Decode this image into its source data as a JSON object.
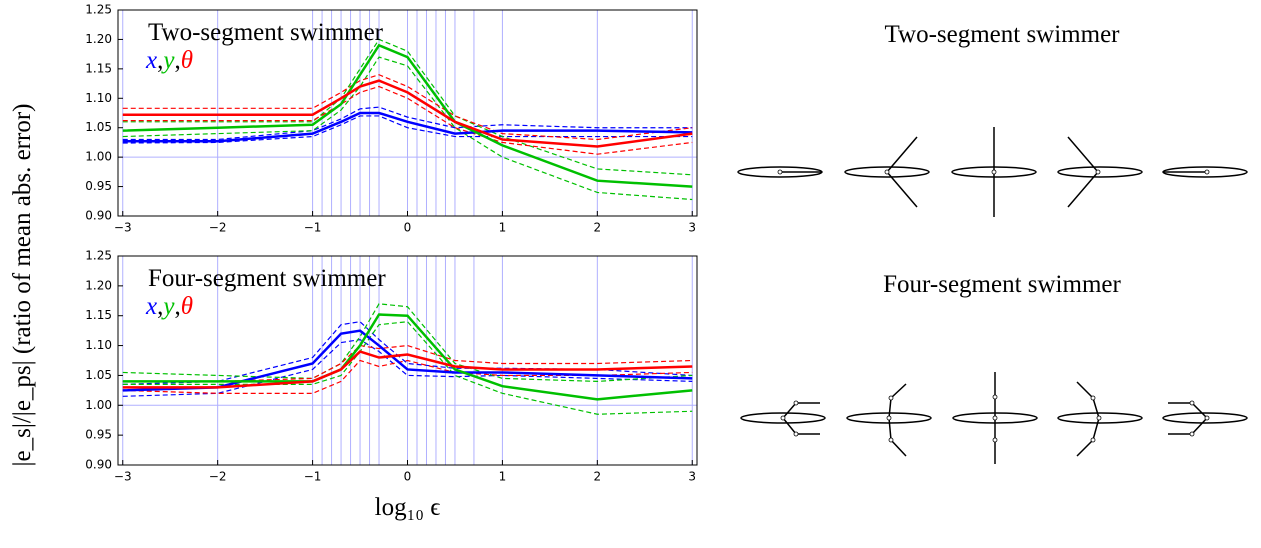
{
  "shared_y_label": "|e_s|/|e_ps| (ratio of mean abs. error)",
  "legend_separator": ",",
  "chart_data": [
    {
      "type": "line",
      "title": "Two-segment swimmer",
      "xlim": [
        -3.05,
        3.05
      ],
      "ylim": [
        0.9,
        1.25
      ],
      "xticks": [
        {
          "value": -3,
          "label": "−3"
        },
        {
          "value": -2,
          "label": "−2"
        },
        {
          "value": -1,
          "label": "−1"
        },
        0,
        1,
        2,
        3
      ],
      "yticks": [
        {
          "value": 0.9,
          "label": "0.90"
        },
        0.95,
        {
          "value": 1.0,
          "label": "1.00"
        },
        1.05,
        {
          "value": 1.1,
          "label": "1.10"
        },
        1.15,
        {
          "value": 1.2,
          "label": "1.20"
        },
        1.25
      ],
      "vgrid": [
        -3,
        -2,
        -1,
        -0.9,
        -0.8,
        -0.7,
        -0.6,
        -0.5,
        -0.4,
        -0.3,
        0,
        0.1,
        0.2,
        0.3,
        0.4,
        0.5,
        0.7,
        1,
        2,
        3
      ],
      "hline": 1,
      "x": [
        -3,
        -2,
        -1,
        -0.7,
        -0.5,
        -0.3,
        0,
        0.5,
        1,
        2,
        3
      ],
      "series": [
        {
          "name": "x",
          "color": "#0000ff",
          "values": [
            1.027,
            1.027,
            1.04,
            1.06,
            1.075,
            1.075,
            1.06,
            1.04,
            1.045,
            1.045,
            1.042
          ],
          "lower": [
            1.024,
            1.025,
            1.035,
            1.055,
            1.07,
            1.07,
            1.05,
            1.035,
            1.035,
            1.035,
            1.035
          ],
          "upper": [
            1.03,
            1.03,
            1.045,
            1.065,
            1.082,
            1.085,
            1.068,
            1.05,
            1.055,
            1.05,
            1.05
          ]
        },
        {
          "name": "y",
          "color": "#00c000",
          "values": [
            1.045,
            1.05,
            1.055,
            1.09,
            1.14,
            1.19,
            1.17,
            1.06,
            1.02,
            0.96,
            0.95
          ],
          "lower": [
            1.035,
            1.04,
            1.045,
            1.08,
            1.12,
            1.17,
            1.155,
            1.05,
            1.0,
            0.94,
            0.928
          ],
          "upper": [
            1.06,
            1.06,
            1.06,
            1.1,
            1.15,
            1.2,
            1.18,
            1.07,
            1.035,
            0.98,
            0.97
          ]
        },
        {
          "name": "θ",
          "color": "#ff0000",
          "values": [
            1.072,
            1.072,
            1.072,
            1.1,
            1.12,
            1.13,
            1.11,
            1.06,
            1.03,
            1.018,
            1.04
          ],
          "lower": [
            1.062,
            1.062,
            1.062,
            1.09,
            1.11,
            1.12,
            1.1,
            1.05,
            1.025,
            1.005,
            1.025
          ],
          "upper": [
            1.083,
            1.083,
            1.083,
            1.11,
            1.13,
            1.14,
            1.12,
            1.07,
            1.04,
            1.03,
            1.05
          ]
        }
      ]
    },
    {
      "type": "line",
      "title": "Four-segment swimmer",
      "x_label": "log₁₀ ϵ",
      "xlim": [
        -3.05,
        3.05
      ],
      "ylim": [
        0.9,
        1.25
      ],
      "xticks": [
        {
          "value": -3,
          "label": "−3"
        },
        {
          "value": -2,
          "label": "−2"
        },
        {
          "value": -1,
          "label": "−1"
        },
        0,
        1,
        2,
        3
      ],
      "yticks": [
        {
          "value": 0.9,
          "label": "0.90"
        },
        0.95,
        {
          "value": 1.0,
          "label": "1.00"
        },
        1.05,
        {
          "value": 1.1,
          "label": "1.10"
        },
        1.15,
        {
          "value": 1.2,
          "label": "1.20"
        },
        1.25
      ],
      "vgrid": [
        -3,
        -2,
        -1,
        -0.9,
        -0.8,
        -0.7,
        -0.6,
        -0.5,
        -0.4,
        -0.3,
        0,
        0.1,
        0.2,
        0.3,
        0.4,
        0.5,
        0.7,
        1,
        2,
        3
      ],
      "hline": 1,
      "x": [
        -3,
        -2,
        -1,
        -0.7,
        -0.5,
        -0.3,
        0,
        0.5,
        1,
        2,
        3
      ],
      "series": [
        {
          "name": "x",
          "color": "#0000ff",
          "values": [
            1.025,
            1.03,
            1.07,
            1.12,
            1.125,
            1.1,
            1.06,
            1.055,
            1.055,
            1.05,
            1.045
          ],
          "lower": [
            1.015,
            1.02,
            1.06,
            1.105,
            1.11,
            1.09,
            1.05,
            1.048,
            1.05,
            1.045,
            1.04
          ],
          "upper": [
            1.035,
            1.04,
            1.08,
            1.135,
            1.14,
            1.11,
            1.07,
            1.062,
            1.062,
            1.06,
            1.05
          ]
        },
        {
          "name": "y",
          "color": "#00c000",
          "values": [
            1.04,
            1.04,
            1.04,
            1.06,
            1.1,
            1.152,
            1.15,
            1.06,
            1.032,
            1.01,
            1.025
          ],
          "lower": [
            1.035,
            1.035,
            1.035,
            1.05,
            1.09,
            1.135,
            1.14,
            1.05,
            1.02,
            0.985,
            0.99
          ],
          "upper": [
            1.055,
            1.05,
            1.045,
            1.07,
            1.115,
            1.17,
            1.165,
            1.07,
            1.045,
            1.04,
            1.05
          ]
        },
        {
          "name": "θ",
          "color": "#ff0000",
          "values": [
            1.03,
            1.03,
            1.04,
            1.06,
            1.09,
            1.08,
            1.085,
            1.065,
            1.06,
            1.06,
            1.065
          ],
          "lower": [
            1.025,
            1.02,
            1.02,
            1.04,
            1.075,
            1.065,
            1.075,
            1.055,
            1.05,
            1.05,
            1.055
          ],
          "upper": [
            1.04,
            1.04,
            1.045,
            1.07,
            1.1,
            1.095,
            1.1,
            1.075,
            1.07,
            1.07,
            1.075
          ]
        }
      ]
    }
  ],
  "diagrams": {
    "titles": [
      "Two-segment swimmer",
      "Four-segment swimmer"
    ]
  }
}
